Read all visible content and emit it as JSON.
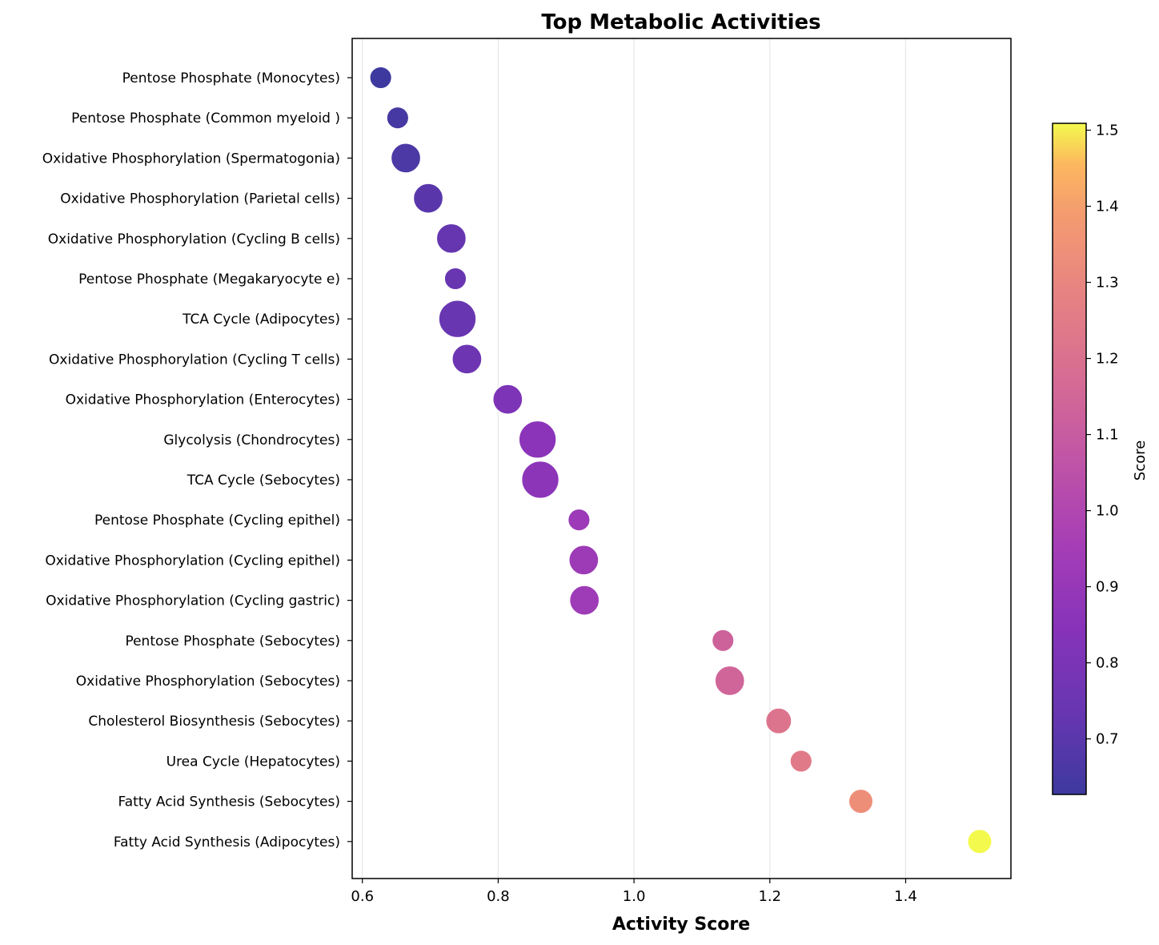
{
  "chart_data": {
    "type": "scatter",
    "title": "Top Metabolic Activities",
    "xlabel": "Activity Score",
    "ylabel": "",
    "xlim": [
      0.585,
      1.555
    ],
    "xticks": [
      "0.6",
      "0.8",
      "1.0",
      "1.2",
      "1.4"
    ],
    "xtick_values": [
      0.6,
      0.8,
      1.0,
      1.2,
      1.4
    ],
    "grid": "vertical",
    "colormap": "plasma",
    "colorbar": {
      "label": "Score",
      "range": [
        0.627,
        1.509
      ],
      "ticks": [
        "0.7",
        "0.8",
        "0.9",
        "1.0",
        "1.1",
        "1.2",
        "1.3",
        "1.4",
        "1.5"
      ],
      "tick_values": [
        0.7,
        0.8,
        0.9,
        1.0,
        1.1,
        1.2,
        1.3,
        1.4,
        1.5
      ]
    },
    "points": [
      {
        "label": "Pentose Phosphate (Monocytes)",
        "x": 0.627,
        "size": 1
      },
      {
        "label": "Pentose Phosphate (Common myeloid )",
        "x": 0.652,
        "size": 1
      },
      {
        "label": "Oxidative Phosphorylation (Spermatogonia)",
        "x": 0.664,
        "size": 2
      },
      {
        "label": "Oxidative Phosphorylation (Parietal cells)",
        "x": 0.697,
        "size": 2
      },
      {
        "label": "Oxidative Phosphorylation (Cycling B cells)",
        "x": 0.731,
        "size": 2
      },
      {
        "label": "Pentose Phosphate (Megakaryocyte e)",
        "x": 0.737,
        "size": 1
      },
      {
        "label": "TCA Cycle (Adipocytes)",
        "x": 0.74,
        "size": 3
      },
      {
        "label": "Oxidative Phosphorylation (Cycling T cells)",
        "x": 0.754,
        "size": 2
      },
      {
        "label": "Oxidative Phosphorylation (Enterocytes)",
        "x": 0.814,
        "size": 2
      },
      {
        "label": "Glycolysis (Chondrocytes)",
        "x": 0.858,
        "size": 3
      },
      {
        "label": "TCA Cycle (Sebocytes)",
        "x": 0.862,
        "size": 3
      },
      {
        "label": "Pentose Phosphate (Cycling epithel)",
        "x": 0.919,
        "size": 1
      },
      {
        "label": "Oxidative Phosphorylation (Cycling epithel)",
        "x": 0.926,
        "size": 2
      },
      {
        "label": "Oxidative Phosphorylation (Cycling gastric)",
        "x": 0.927,
        "size": 2
      },
      {
        "label": "Pentose Phosphate (Sebocytes)",
        "x": 1.131,
        "size": 1
      },
      {
        "label": "Oxidative Phosphorylation (Sebocytes)",
        "x": 1.141,
        "size": 2
      },
      {
        "label": "Cholesterol Biosynthesis (Sebocytes)",
        "x": 1.213,
        "size": 1.5
      },
      {
        "label": "Urea Cycle (Hepatocytes)",
        "x": 1.246,
        "size": 1
      },
      {
        "label": "Fatty Acid Synthesis (Sebocytes)",
        "x": 1.334,
        "size": 1.3
      },
      {
        "label": "Fatty Acid Synthesis (Adipocytes)",
        "x": 1.509,
        "size": 1.3
      }
    ]
  }
}
